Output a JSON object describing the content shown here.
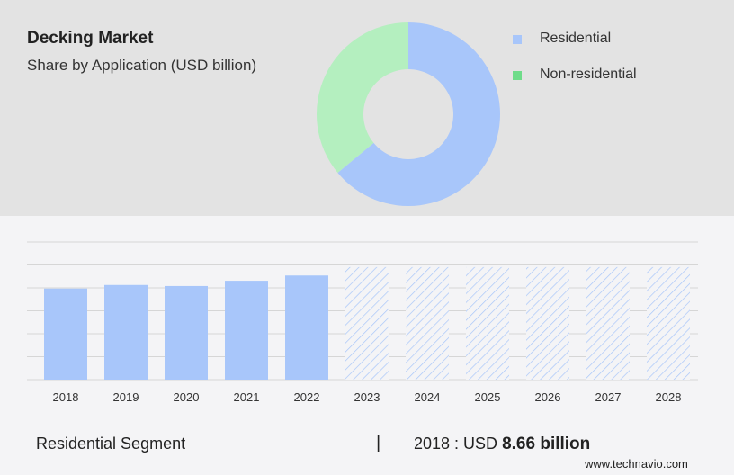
{
  "title": "Decking Market",
  "subtitle": "Share by Application (USD billion)",
  "colors": {
    "residential": "#a8c6fa",
    "non_residential": "#b4efbf",
    "legend_non_residential": "#6fdc8a",
    "hatch": "#a8c6fa"
  },
  "legend": [
    {
      "label": "Residential",
      "color": "#a8c6fa"
    },
    {
      "label": "Non-residential",
      "color": "#6fdc8a"
    }
  ],
  "chart_data": [
    {
      "type": "pie",
      "variant": "donut",
      "series": [
        {
          "name": "Residential",
          "value": 0.64
        },
        {
          "name": "Non-residential",
          "value": 0.36
        }
      ]
    },
    {
      "type": "bar",
      "categories": [
        "2018",
        "2019",
        "2020",
        "2021",
        "2022",
        "2023",
        "2024",
        "2025",
        "2026",
        "2027",
        "2028"
      ],
      "values": [
        8.66,
        9.0,
        8.9,
        9.4,
        9.9,
        10.7,
        10.7,
        10.7,
        10.7,
        10.7,
        10.7
      ],
      "forecast_from": "2023",
      "ylim": [
        0,
        13
      ]
    }
  ],
  "footer": {
    "segment": "Residential Segment",
    "separator": "|",
    "year_prefix": "2018 : USD",
    "value": "8.66 billion"
  },
  "brand": "www.technavio.com"
}
